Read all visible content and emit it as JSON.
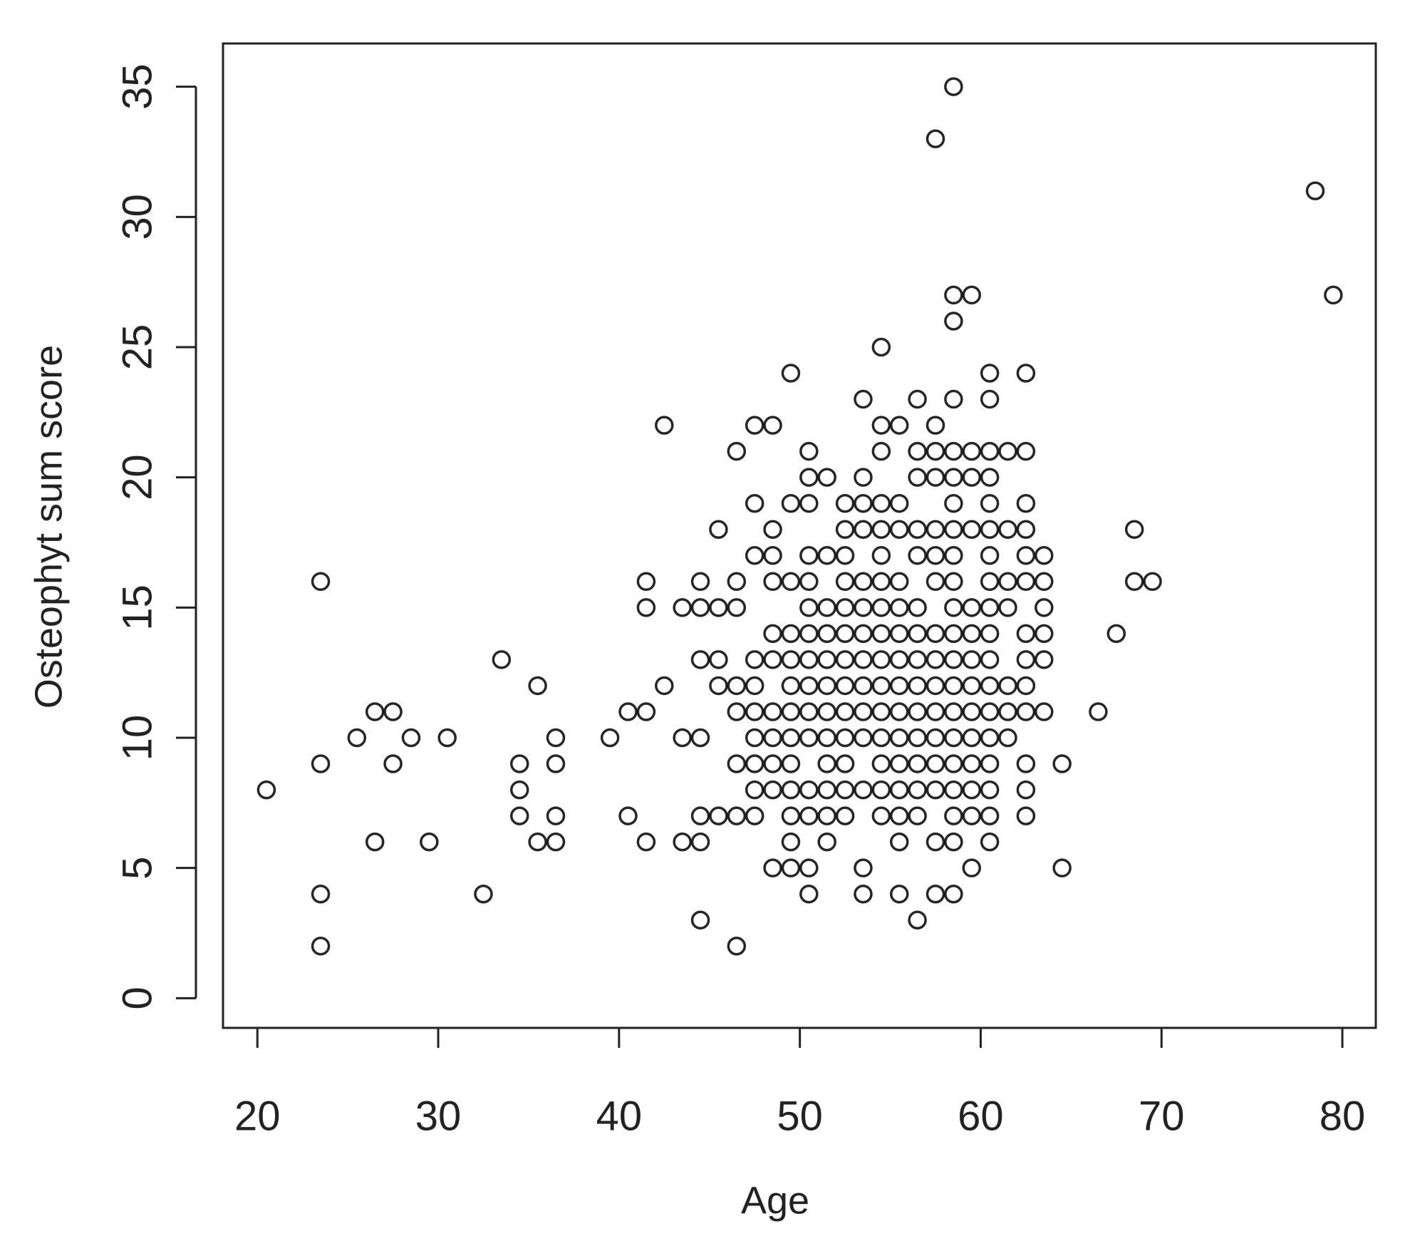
{
  "chart_data": {
    "type": "scatter",
    "xlabel": "Age",
    "ylabel": "Osteophyt sum score",
    "xlim": [
      18.1,
      81.85
    ],
    "ylim": [
      -1.14,
      36.66
    ],
    "xticks": [
      20,
      30,
      40,
      50,
      60,
      70,
      80
    ],
    "yticks": [
      0,
      5,
      10,
      15,
      20,
      25,
      30,
      35
    ],
    "color": "#000000",
    "x": [
      20.5,
      23.5,
      23.5,
      23.5,
      23.5,
      25.5,
      26.5,
      26.5,
      27.5,
      27.5,
      28.5,
      29.5,
      30.5,
      32.5,
      33.5,
      34.5,
      34.5,
      34.5,
      35.5,
      35.5,
      36.5,
      36.5,
      36.5,
      36.5,
      39.5,
      40.5,
      40.5,
      41.5,
      41.5,
      41.5,
      41.5,
      42.5,
      42.5,
      43.5,
      43.5,
      43.5,
      44.5,
      44.5,
      44.5,
      44.5,
      44.5,
      44.5,
      44.5,
      45.5,
      45.5,
      45.5,
      45.5,
      45.5,
      46.5,
      46.5,
      46.5,
      46.5,
      46.5,
      46.5,
      46.5,
      46.5,
      47.5,
      47.5,
      47.5,
      47.5,
      47.5,
      47.5,
      47.5,
      47.5,
      47.5,
      47.5,
      48.5,
      48.5,
      48.5,
      48.5,
      48.5,
      48.5,
      48.5,
      48.5,
      48.5,
      48.5,
      48.5,
      49.5,
      49.5,
      49.5,
      49.5,
      49.5,
      49.5,
      49.5,
      49.5,
      49.5,
      49.5,
      49.5,
      49.5,
      49.5,
      50.5,
      50.5,
      50.5,
      50.5,
      50.5,
      50.5,
      50.5,
      50.5,
      50.5,
      50.5,
      50.5,
      50.5,
      50.5,
      50.5,
      50.5,
      51.5,
      51.5,
      51.5,
      51.5,
      51.5,
      51.5,
      51.5,
      51.5,
      51.5,
      51.5,
      51.5,
      51.5,
      52.5,
      52.5,
      52.5,
      52.5,
      52.5,
      52.5,
      52.5,
      52.5,
      52.5,
      52.5,
      52.5,
      52.5,
      52.5,
      53.5,
      53.5,
      53.5,
      53.5,
      53.5,
      53.5,
      53.5,
      53.5,
      53.5,
      53.5,
      53.5,
      53.5,
      53.5,
      53.5,
      54.5,
      54.5,
      54.5,
      54.5,
      54.5,
      54.5,
      54.5,
      54.5,
      54.5,
      54.5,
      54.5,
      54.5,
      54.5,
      54.5,
      54.5,
      54.5,
      55.5,
      55.5,
      55.5,
      55.5,
      55.5,
      55.5,
      55.5,
      55.5,
      55.5,
      55.5,
      55.5,
      55.5,
      55.5,
      55.5,
      55.5,
      56.5,
      56.5,
      56.5,
      56.5,
      56.5,
      56.5,
      56.5,
      56.5,
      56.5,
      56.5,
      56.5,
      56.5,
      56.5,
      56.5,
      56.5,
      57.5,
      57.5,
      57.5,
      57.5,
      57.5,
      57.5,
      57.5,
      57.5,
      57.5,
      57.5,
      57.5,
      57.5,
      57.5,
      57.5,
      57.5,
      57.5,
      58.5,
      58.5,
      58.5,
      58.5,
      58.5,
      58.5,
      58.5,
      58.5,
      58.5,
      58.5,
      58.5,
      58.5,
      58.5,
      58.5,
      58.5,
      58.5,
      58.5,
      58.5,
      58.5,
      58.5,
      58.5,
      59.5,
      59.5,
      59.5,
      59.5,
      59.5,
      59.5,
      59.5,
      59.5,
      59.5,
      59.5,
      59.5,
      59.5,
      59.5,
      59.5,
      60.5,
      60.5,
      60.5,
      60.5,
      60.5,
      60.5,
      60.5,
      60.5,
      60.5,
      60.5,
      60.5,
      60.5,
      60.5,
      60.5,
      60.5,
      60.5,
      60.5,
      60.5,
      61.5,
      61.5,
      61.5,
      61.5,
      61.5,
      61.5,
      61.5,
      62.5,
      62.5,
      62.5,
      62.5,
      62.5,
      62.5,
      62.5,
      62.5,
      62.5,
      62.5,
      62.5,
      62.5,
      62.5,
      63.5,
      63.5,
      63.5,
      63.5,
      63.5,
      63.5,
      64.5,
      64.5,
      66.5,
      67.5,
      68.5,
      68.5,
      69.5,
      78.5,
      79.5
    ],
    "values": [
      8,
      16,
      9,
      4,
      2,
      10,
      11,
      6,
      11,
      9,
      10,
      6,
      10,
      4,
      13,
      9,
      8,
      7,
      12,
      6,
      10,
      9,
      7,
      6,
      10,
      11,
      7,
      16,
      15,
      11,
      6,
      22,
      12,
      15,
      10,
      6,
      16,
      15,
      13,
      10,
      7,
      6,
      3,
      18,
      15,
      13,
      12,
      7,
      21,
      16,
      15,
      12,
      11,
      9,
      7,
      2,
      22,
      19,
      17,
      13,
      12,
      11,
      10,
      9,
      8,
      7,
      22,
      18,
      17,
      16,
      14,
      13,
      11,
      10,
      9,
      8,
      5,
      24,
      19,
      16,
      14,
      13,
      12,
      11,
      10,
      9,
      8,
      7,
      6,
      5,
      21,
      20,
      19,
      17,
      16,
      15,
      14,
      13,
      12,
      11,
      10,
      8,
      7,
      5,
      4,
      20,
      17,
      15,
      14,
      13,
      12,
      11,
      10,
      9,
      8,
      7,
      6,
      19,
      18,
      17,
      16,
      15,
      14,
      13,
      12,
      11,
      10,
      9,
      8,
      7,
      23,
      20,
      19,
      18,
      16,
      15,
      14,
      13,
      12,
      11,
      10,
      8,
      5,
      4,
      25,
      22,
      21,
      19,
      18,
      17,
      16,
      15,
      14,
      13,
      12,
      11,
      10,
      9,
      8,
      7,
      22,
      19,
      18,
      16,
      15,
      14,
      13,
      12,
      11,
      10,
      9,
      8,
      7,
      6,
      4,
      23,
      21,
      20,
      18,
      17,
      15,
      14,
      13,
      12,
      11,
      10,
      9,
      8,
      7,
      3,
      33,
      22,
      21,
      20,
      18,
      17,
      16,
      14,
      13,
      12,
      11,
      10,
      9,
      8,
      6,
      4,
      35,
      27,
      26,
      23,
      21,
      20,
      19,
      18,
      17,
      16,
      15,
      14,
      13,
      12,
      11,
      10,
      9,
      8,
      7,
      6,
      4,
      27,
      21,
      20,
      18,
      15,
      14,
      13,
      12,
      11,
      10,
      9,
      8,
      7,
      5,
      24,
      23,
      21,
      20,
      19,
      18,
      17,
      16,
      15,
      14,
      13,
      12,
      11,
      10,
      9,
      8,
      7,
      6,
      21,
      18,
      16,
      15,
      12,
      11,
      10,
      24,
      21,
      19,
      18,
      17,
      16,
      14,
      13,
      12,
      11,
      9,
      8,
      7,
      17,
      16,
      15,
      14,
      13,
      11,
      9,
      5,
      11,
      14,
      18,
      16,
      16,
      31,
      27
    ]
  }
}
